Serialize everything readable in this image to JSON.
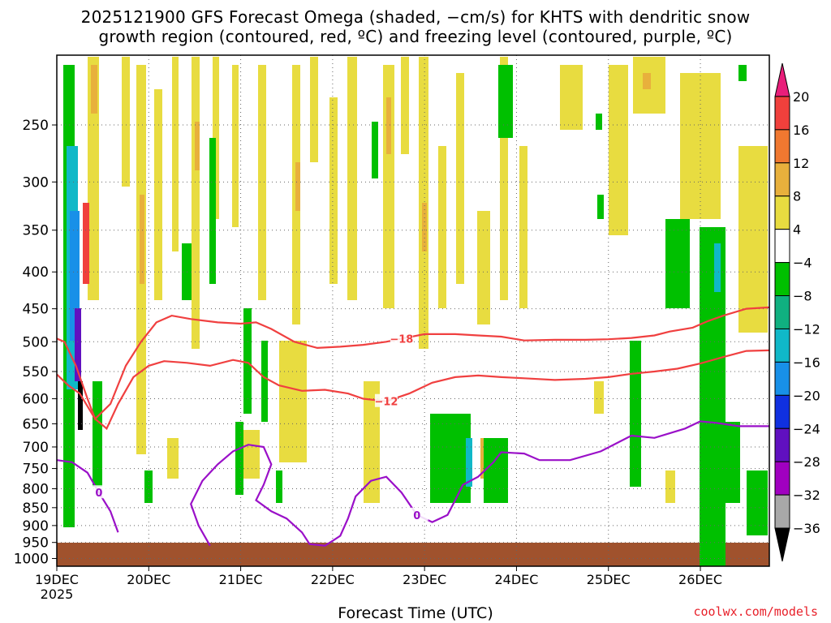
{
  "header": {
    "title_line1": "2025121900 GFS Forecast Omega (shaded, −cm/s) for KHTS with dendritic snow",
    "title_line2": "growth region (contoured, red, ºC) and freezing level (contoured, purple, ºC)"
  },
  "footer": {
    "xlabel": "Forecast Time (UTC)",
    "credit": "coolwx.com/models"
  },
  "chart_data": {
    "type": "heatmap",
    "title": "2025121900 GFS Forecast Omega (shaded, −cm/s) for KHTS with dendritic snow growth region (contoured, red, ºC) and freezing level (contoured, purple, ºC)",
    "xlabel": "Forecast Time (UTC)",
    "ylabel": "",
    "x_range_hours": [
      0,
      186
    ],
    "x_ticks": [
      {
        "h": 0,
        "label": "19DEC",
        "sub": "2025"
      },
      {
        "h": 24,
        "label": "20DEC"
      },
      {
        "h": 48,
        "label": "21DEC"
      },
      {
        "h": 72,
        "label": "22DEC"
      },
      {
        "h": 96,
        "label": "23DEC"
      },
      {
        "h": 120,
        "label": "24DEC"
      },
      {
        "h": 144,
        "label": "25DEC"
      },
      {
        "h": 168,
        "label": "26DEC"
      }
    ],
    "y_axis": "pressure (hPa), reversed, log scale",
    "y_range": [
      1025,
      200
    ],
    "y_ticks": [
      250,
      300,
      350,
      400,
      450,
      500,
      550,
      600,
      650,
      700,
      750,
      800,
      850,
      900,
      950,
      1000
    ],
    "grid": true,
    "colorbar": {
      "labels": [
        "20",
        "16",
        "12",
        "8",
        "4",
        "−4",
        "−8",
        "−12",
        "−16",
        "−20",
        "−24",
        "−28",
        "−32",
        "−36"
      ],
      "colors": [
        "#e91e7a",
        "#f0403c",
        "#f07830",
        "#e8b03c",
        "#e8dc40",
        "#ffffff",
        "#00c000",
        "#10b080",
        "#10b8c8",
        "#1890e8",
        "#1030e0",
        "#6010c0",
        "#a000c0",
        "#a8a8a8",
        "#000000"
      ]
    },
    "contours": [
      {
        "name": "−18",
        "color": "#f04040",
        "points": [
          [
            0,
            495
          ],
          [
            2,
            500
          ],
          [
            5,
            540
          ],
          [
            8,
            600
          ],
          [
            10,
            640
          ],
          [
            14,
            610
          ],
          [
            18,
            540
          ],
          [
            22,
            500
          ],
          [
            26,
            470
          ],
          [
            30,
            460
          ],
          [
            35,
            465
          ],
          [
            42,
            470
          ],
          [
            48,
            472
          ],
          [
            52,
            470
          ],
          [
            56,
            480
          ],
          [
            62,
            500
          ],
          [
            68,
            510
          ],
          [
            74,
            508
          ],
          [
            80,
            505
          ],
          [
            86,
            500
          ],
          [
            90,
            495
          ],
          [
            96,
            488
          ],
          [
            104,
            488
          ],
          [
            110,
            490
          ],
          [
            116,
            492
          ],
          [
            122,
            498
          ],
          [
            130,
            497
          ],
          [
            138,
            497
          ],
          [
            144,
            496
          ],
          [
            150,
            494
          ],
          [
            156,
            490
          ],
          [
            160,
            484
          ],
          [
            166,
            478
          ],
          [
            170,
            468
          ],
          [
            174,
            460
          ],
          [
            180,
            450
          ],
          [
            186,
            448
          ]
        ]
      },
      {
        "name": "−12",
        "color": "#f04040",
        "points": [
          [
            0,
            555
          ],
          [
            3,
            575
          ],
          [
            6,
            590
          ],
          [
            10,
            640
          ],
          [
            13,
            660
          ],
          [
            16,
            610
          ],
          [
            20,
            560
          ],
          [
            24,
            540
          ],
          [
            28,
            532
          ],
          [
            34,
            535
          ],
          [
            40,
            540
          ],
          [
            46,
            530
          ],
          [
            50,
            535
          ],
          [
            54,
            560
          ],
          [
            58,
            575
          ],
          [
            64,
            585
          ],
          [
            70,
            583
          ],
          [
            76,
            590
          ],
          [
            80,
            600
          ],
          [
            86,
            605
          ],
          [
            92,
            590
          ],
          [
            98,
            570
          ],
          [
            104,
            560
          ],
          [
            110,
            557
          ],
          [
            116,
            560
          ],
          [
            122,
            562
          ],
          [
            130,
            565
          ],
          [
            138,
            563
          ],
          [
            144,
            560
          ],
          [
            150,
            554
          ],
          [
            156,
            550
          ],
          [
            162,
            545
          ],
          [
            168,
            536
          ],
          [
            174,
            525
          ],
          [
            180,
            515
          ],
          [
            186,
            514
          ]
        ]
      },
      {
        "name": "0",
        "color": "#9a10c8",
        "points": [
          [
            0,
            730
          ],
          [
            4,
            735
          ],
          [
            8,
            760
          ],
          [
            11,
            810
          ],
          [
            14,
            860
          ],
          [
            16,
            920
          ]
        ]
      },
      {
        "name": "0",
        "color": "#9a10c8",
        "points": [
          [
            40,
            960
          ],
          [
            37,
            900
          ],
          [
            35,
            840
          ],
          [
            38,
            780
          ],
          [
            42,
            740
          ],
          [
            46,
            710
          ],
          [
            50,
            695
          ],
          [
            54,
            700
          ],
          [
            56,
            740
          ],
          [
            54,
            790
          ],
          [
            52,
            830
          ],
          [
            56,
            860
          ],
          [
            60,
            880
          ],
          [
            64,
            920
          ],
          [
            66,
            955
          ],
          [
            70,
            960
          ],
          [
            72,
            945
          ],
          [
            74,
            930
          ],
          [
            76,
            880
          ],
          [
            78,
            820
          ],
          [
            82,
            780
          ],
          [
            86,
            770
          ],
          [
            90,
            810
          ],
          [
            94,
            870
          ],
          [
            98,
            890
          ],
          [
            102,
            870
          ],
          [
            104,
            830
          ],
          [
            106,
            790
          ],
          [
            110,
            770
          ],
          [
            114,
            735
          ],
          [
            116,
            712
          ],
          [
            122,
            715
          ],
          [
            126,
            730
          ],
          [
            134,
            730
          ],
          [
            142,
            710
          ],
          [
            150,
            675
          ],
          [
            156,
            680
          ],
          [
            160,
            670
          ],
          [
            164,
            660
          ],
          [
            168,
            645
          ],
          [
            172,
            648
          ],
          [
            178,
            655
          ],
          [
            186,
            655
          ]
        ]
      }
    ]
  }
}
